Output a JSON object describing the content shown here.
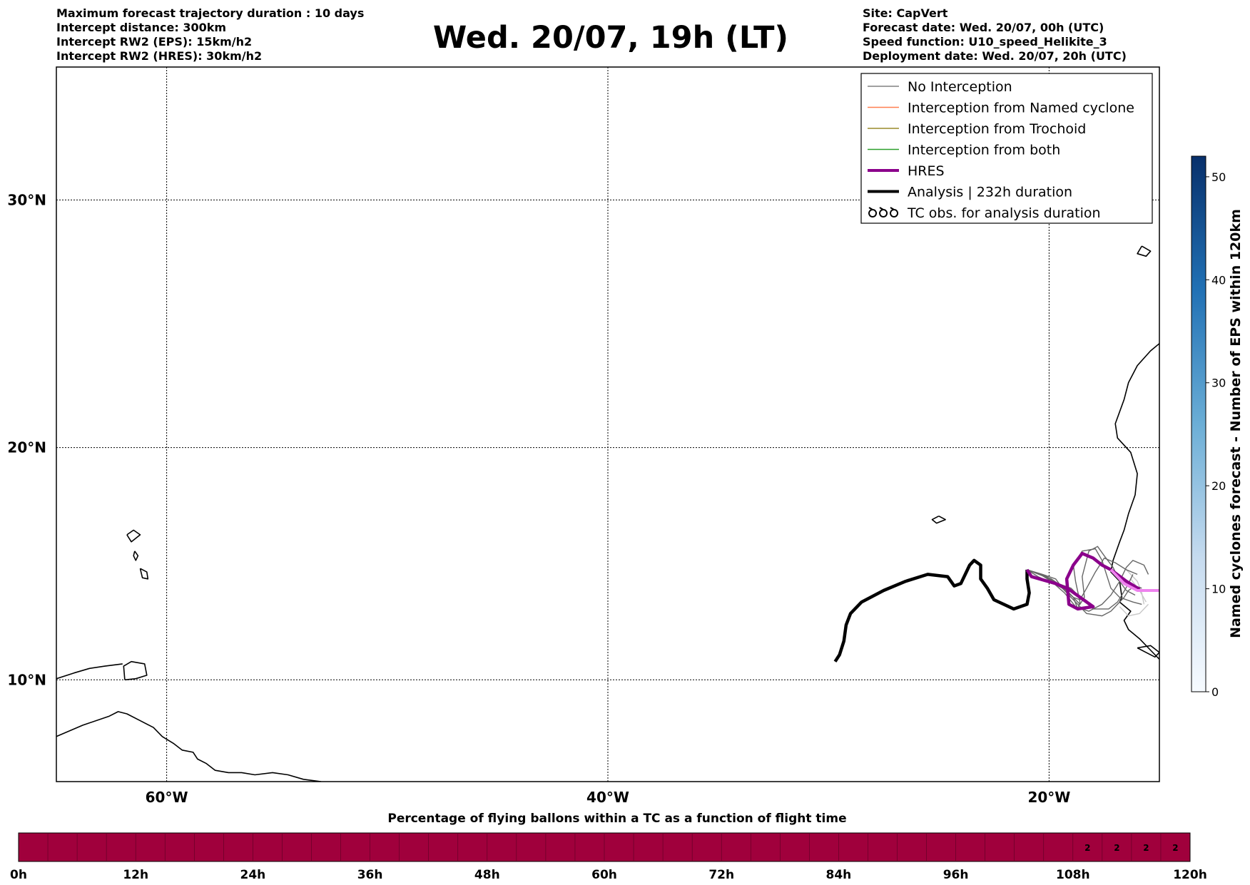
{
  "header": {
    "left_lines": [
      "Maximum forecast trajectory duration : 10 days",
      "Intercept distance: 300km",
      "Intercept RW2 (EPS):  15km/h2",
      "Intercept RW2 (HRES): 30km/h2"
    ],
    "title": "Wed. 20/07, 19h (LT)",
    "right_lines": [
      "Site: CapVert",
      "Forecast date: Wed. 20/07, 00h (UTC)",
      "Speed function: U10_speed_Helikite_3",
      "Deployment date: Wed. 20/07, 20h (UTC)"
    ]
  },
  "map": {
    "lon_range": [
      -65,
      -15
    ],
    "lat_range": [
      5.5,
      35
    ],
    "lon_ticks": [
      {
        "lon": -60,
        "label": "60°W"
      },
      {
        "lon": -40,
        "label": "40°W"
      },
      {
        "lon": -20,
        "label": "20°W"
      }
    ],
    "lat_ticks": [
      {
        "lat": 30,
        "label": "30°N"
      },
      {
        "lat": 20,
        "label": "20°N"
      },
      {
        "lat": 10,
        "label": "10°N"
      }
    ],
    "coastlines": {
      "venezuela": [
        [
          -65,
          7.5
        ],
        [
          -63.8,
          8.0
        ],
        [
          -62.6,
          8.4
        ],
        [
          -62.2,
          8.6
        ],
        [
          -61.8,
          8.5
        ],
        [
          -61.2,
          8.2
        ],
        [
          -60.6,
          7.9
        ],
        [
          -60.2,
          7.5
        ],
        [
          -59.7,
          7.2
        ],
        [
          -59.3,
          6.9
        ],
        [
          -58.8,
          6.8
        ],
        [
          -58.6,
          6.5
        ],
        [
          -58.2,
          6.3
        ],
        [
          -57.8,
          6.0
        ],
        [
          -57.2,
          5.9
        ],
        [
          -56.6,
          5.9
        ],
        [
          -56.0,
          5.8
        ],
        [
          -55.2,
          5.9
        ],
        [
          -54.5,
          5.8
        ],
        [
          -53.8,
          5.6
        ],
        [
          -53.0,
          5.5
        ]
      ],
      "trinidad": [
        [
          -61.9,
          10.0
        ],
        [
          -61.4,
          10.05
        ],
        [
          -60.9,
          10.2
        ],
        [
          -61.0,
          10.7
        ],
        [
          -61.6,
          10.8
        ],
        [
          -61.95,
          10.6
        ],
        [
          -61.9,
          10.0
        ]
      ],
      "venezuela_north": [
        [
          -65,
          10.05
        ],
        [
          -64.2,
          10.3
        ],
        [
          -63.5,
          10.5
        ],
        [
          -62.8,
          10.6
        ],
        [
          -62.0,
          10.7
        ]
      ],
      "guadeloupe": [
        [
          -61.8,
          16.3
        ],
        [
          -61.5,
          16.5
        ],
        [
          -61.2,
          16.3
        ],
        [
          -61.6,
          16.0
        ],
        [
          -61.8,
          16.3
        ]
      ],
      "martinique": [
        [
          -61.2,
          14.85
        ],
        [
          -60.9,
          14.7
        ],
        [
          -60.85,
          14.4
        ],
        [
          -61.1,
          14.45
        ],
        [
          -61.2,
          14.85
        ]
      ],
      "dominica": [
        [
          -61.45,
          15.6
        ],
        [
          -61.3,
          15.4
        ],
        [
          -61.4,
          15.2
        ],
        [
          -61.5,
          15.4
        ],
        [
          -61.45,
          15.6
        ]
      ],
      "cape_verde": [
        [
          -25.0,
          17.1
        ],
        [
          -24.7,
          16.95
        ],
        [
          -25.1,
          16.8
        ],
        [
          -25.3,
          16.95
        ],
        [
          -25.0,
          17.1
        ]
      ],
      "canary": [
        [
          -15.8,
          28.2
        ],
        [
          -15.4,
          28.0
        ],
        [
          -15.6,
          27.8
        ],
        [
          -16.0,
          27.9
        ],
        [
          -15.8,
          28.2
        ]
      ],
      "morocco": [
        [
          -15.0,
          24.3
        ],
        [
          -15.4,
          24.0
        ],
        [
          -16.0,
          23.4
        ],
        [
          -16.4,
          22.7
        ],
        [
          -16.6,
          22.0
        ],
        [
          -17.0,
          21.0
        ],
        [
          -16.9,
          20.4
        ],
        [
          -16.3,
          19.8
        ],
        [
          -16.0,
          18.9
        ],
        [
          -16.1,
          18.0
        ],
        [
          -16.4,
          17.2
        ],
        [
          -16.6,
          16.5
        ],
        [
          -16.8,
          16.0
        ],
        [
          -17.1,
          15.2
        ],
        [
          -17.2,
          14.7
        ],
        [
          -16.8,
          14.3
        ],
        [
          -16.7,
          13.6
        ],
        [
          -16.8,
          13.4
        ],
        [
          -16.3,
          13.0
        ],
        [
          -16.6,
          12.6
        ],
        [
          -16.4,
          12.2
        ],
        [
          -15.9,
          11.8
        ],
        [
          -15.5,
          11.4
        ],
        [
          -15.0,
          10.9
        ]
      ],
      "guinea_islands": [
        [
          -16.0,
          11.4
        ],
        [
          -15.6,
          11.2
        ],
        [
          -15.2,
          11.0
        ],
        [
          -15.0,
          11.2
        ],
        [
          -15.4,
          11.5
        ],
        [
          -16.0,
          11.4
        ]
      ]
    }
  },
  "legend": {
    "items": [
      {
        "label": "No Interception",
        "color": "#808080",
        "style": "thin"
      },
      {
        "label": "Interception from Named cyclone",
        "color": "#ff7f50",
        "style": "thin"
      },
      {
        "label": "Interception from Trochoid",
        "color": "#9a8a2a",
        "style": "thin"
      },
      {
        "label": "Interception from both",
        "color": "#2ca02c",
        "style": "thin"
      },
      {
        "label": "HRES",
        "color": "#8b008b",
        "style": "thick"
      },
      {
        "label": "Analysis | 232h duration",
        "color": "#000000",
        "style": "thick"
      },
      {
        "label": "TC obs. for analysis duration",
        "color": "#000000",
        "style": "symbol"
      }
    ]
  },
  "tracks": {
    "analysis": [
      [
        -29.7,
        10.8
      ],
      [
        -29.5,
        11.1
      ],
      [
        -29.3,
        11.7
      ],
      [
        -29.2,
        12.4
      ],
      [
        -29.0,
        12.9
      ],
      [
        -28.5,
        13.4
      ],
      [
        -27.5,
        13.9
      ],
      [
        -26.5,
        14.3
      ],
      [
        -25.5,
        14.6
      ],
      [
        -24.6,
        14.5
      ],
      [
        -24.3,
        14.1
      ],
      [
        -24.0,
        14.2
      ],
      [
        -23.8,
        14.6
      ],
      [
        -23.6,
        15.0
      ],
      [
        -23.4,
        15.2
      ],
      [
        -23.1,
        15.0
      ],
      [
        -23.1,
        14.4
      ],
      [
        -22.8,
        14.0
      ],
      [
        -22.5,
        13.5
      ],
      [
        -21.6,
        13.1
      ],
      [
        -21.0,
        13.3
      ],
      [
        -20.9,
        13.8
      ],
      [
        -21.0,
        14.4
      ],
      [
        -21.0,
        14.8
      ]
    ],
    "hres": [
      [
        -21.0,
        14.8
      ],
      [
        -20.8,
        14.5
      ],
      [
        -19.7,
        14.2
      ],
      [
        -19.1,
        13.95
      ],
      [
        -18.0,
        13.2
      ],
      [
        -18.7,
        13.1
      ],
      [
        -19.1,
        13.3
      ],
      [
        -19.2,
        14.4
      ],
      [
        -18.9,
        15.0
      ],
      [
        -18.5,
        15.5
      ],
      [
        -18.0,
        15.3
      ],
      [
        -17.6,
        15.0
      ],
      [
        -17.2,
        14.8
      ],
      [
        -16.5,
        14.3
      ],
      [
        -15.9,
        13.95
      ]
    ],
    "hres_light": [
      [
        -17.2,
        14.8
      ],
      [
        -16.6,
        14.2
      ],
      [
        -16.0,
        13.9
      ],
      [
        -15.0,
        13.9
      ]
    ],
    "eps": [
      [
        [
          -21.0,
          14.8
        ],
        [
          -20.3,
          14.6
        ],
        [
          -19.7,
          14.4
        ],
        [
          -19.4,
          14.0
        ],
        [
          -18.9,
          13.6
        ],
        [
          -18.7,
          13.1
        ],
        [
          -18.6,
          13.4
        ],
        [
          -18.8,
          14.3
        ],
        [
          -18.9,
          15.0
        ],
        [
          -18.5,
          15.6
        ],
        [
          -17.9,
          15.7
        ],
        [
          -17.6,
          15.2
        ],
        [
          -17.4,
          14.6
        ],
        [
          -17.2,
          14.0
        ],
        [
          -16.8,
          13.6
        ],
        [
          -16.2,
          13.4
        ],
        [
          -15.8,
          13.3
        ]
      ],
      [
        [
          -21.0,
          14.8
        ],
        [
          -19.9,
          14.4
        ],
        [
          -19.3,
          14.0
        ],
        [
          -18.6,
          13.3
        ],
        [
          -18.4,
          13.6
        ],
        [
          -18.5,
          14.5
        ],
        [
          -18.2,
          15.6
        ],
        [
          -17.8,
          15.8
        ],
        [
          -17.5,
          15.4
        ],
        [
          -17.1,
          14.9
        ],
        [
          -16.8,
          14.3
        ],
        [
          -16.5,
          13.9
        ],
        [
          -16.1,
          13.7
        ]
      ],
      [
        [
          -21.0,
          14.8
        ],
        [
          -20.2,
          14.5
        ],
        [
          -19.6,
          14.2
        ],
        [
          -19.0,
          14.0
        ],
        [
          -18.6,
          13.6
        ],
        [
          -18.0,
          13.1
        ],
        [
          -17.3,
          13.1
        ],
        [
          -16.9,
          13.4
        ],
        [
          -16.7,
          13.7
        ],
        [
          -16.4,
          14.2
        ],
        [
          -16.2,
          14.6
        ]
      ],
      [
        [
          -21.0,
          14.8
        ],
        [
          -20.4,
          14.6
        ],
        [
          -19.9,
          14.3
        ],
        [
          -19.3,
          13.8
        ],
        [
          -18.8,
          13.2
        ],
        [
          -18.2,
          13.0
        ],
        [
          -17.6,
          13.3
        ],
        [
          -17.2,
          13.7
        ],
        [
          -16.8,
          14.3
        ],
        [
          -16.5,
          14.9
        ],
        [
          -16.2,
          15.2
        ],
        [
          -15.7,
          15.0
        ],
        [
          -15.5,
          14.6
        ]
      ],
      [
        [
          -21.0,
          14.8
        ],
        [
          -20.1,
          14.5
        ],
        [
          -19.5,
          14.1
        ],
        [
          -18.9,
          13.5
        ],
        [
          -18.3,
          12.9
        ],
        [
          -17.6,
          12.8
        ],
        [
          -17.2,
          13.0
        ],
        [
          -16.9,
          13.3
        ],
        [
          -16.6,
          13.6
        ],
        [
          -16.4,
          13.9
        ],
        [
          -16.1,
          14.1
        ],
        [
          -15.8,
          14.0
        ]
      ],
      [
        [
          -21.0,
          14.8
        ],
        [
          -20.5,
          14.5
        ],
        [
          -19.8,
          14.2
        ],
        [
          -19.2,
          13.9
        ],
        [
          -18.9,
          13.6
        ],
        [
          -18.6,
          13.5
        ],
        [
          -18.3,
          14.0
        ],
        [
          -17.9,
          14.7
        ],
        [
          -17.5,
          15.3
        ],
        [
          -17.0,
          15.1
        ],
        [
          -16.5,
          14.8
        ],
        [
          -16.0,
          14.6
        ]
      ]
    ],
    "eps_light": [
      [
        [
          -16.5,
          14.8
        ],
        [
          -16.0,
          14.3
        ],
        [
          -15.8,
          13.8
        ],
        [
          -15.7,
          13.3
        ]
      ],
      [
        [
          -16.3,
          14.4
        ],
        [
          -15.9,
          13.9
        ],
        [
          -15.6,
          13.4
        ]
      ],
      [
        [
          -16.8,
          13.2
        ],
        [
          -16.4,
          12.8
        ],
        [
          -15.9,
          12.9
        ],
        [
          -15.5,
          13.3
        ]
      ]
    ]
  },
  "colorbar": {
    "label": "Named cyclones forecast - Number of EPS within 120km",
    "min": 0,
    "max": 52,
    "ticks": [
      0,
      10,
      20,
      30,
      40,
      50
    ],
    "colors": [
      "#f7fbff",
      "#c6dbef",
      "#6baed6",
      "#2171b5",
      "#08306b"
    ]
  },
  "bottom_bar": {
    "title": "Percentage of flying ballons within a TC as a function of flight time",
    "fill_color": "#a0003c",
    "cells": 40,
    "ticks": [
      "0h",
      "12h",
      "24h",
      "36h",
      "48h",
      "60h",
      "72h",
      "84h",
      "96h",
      "108h",
      "120h"
    ],
    "value_cells": [
      {
        "index": 36,
        "value": "2"
      },
      {
        "index": 37,
        "value": "2"
      },
      {
        "index": 38,
        "value": "2"
      },
      {
        "index": 39,
        "value": "2"
      }
    ]
  }
}
